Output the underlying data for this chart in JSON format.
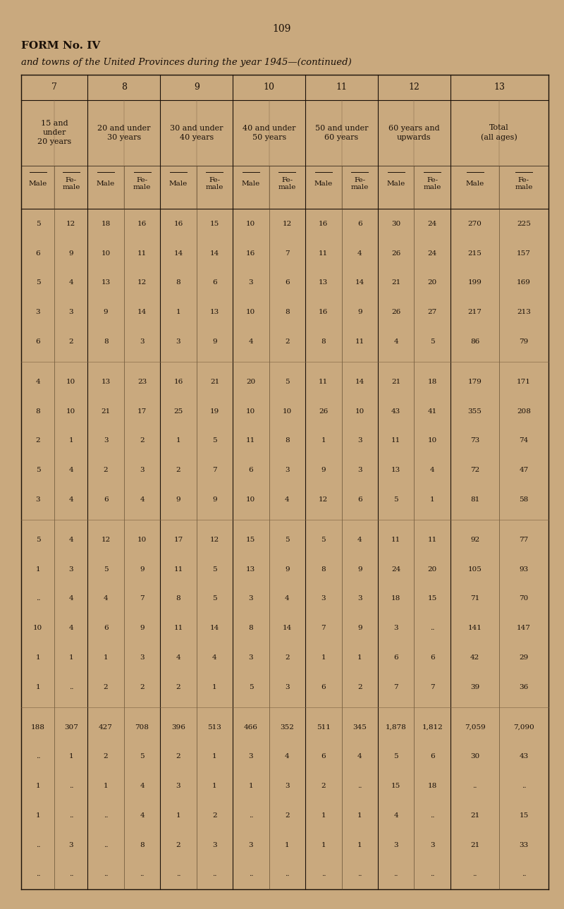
{
  "page_number": "109",
  "form_title": "FORM No. IV",
  "subtitle": "and towns of the United Provinces during the year 1945—(continued)",
  "bg": "#c9a97e",
  "tc": "#1a1008",
  "col_numbers": [
    "7",
    "8",
    "9",
    "10",
    "11",
    "12",
    "13"
  ],
  "col_descs": [
    "15 and\nunder\n20 years",
    "20 and under\n30 years",
    "30 and under\n40 years",
    "40 and under\n50 years",
    "50 and under\n60 years",
    "60 years and\nupwards",
    "Total\n(all ages)"
  ],
  "data_rows": [
    [
      "5",
      "12",
      "18",
      "16",
      "16",
      "15",
      "10",
      "12",
      "16",
      "6",
      "30",
      "24",
      "270",
      "225"
    ],
    [
      "6",
      "9",
      "10",
      "11",
      "14",
      "14",
      "16",
      "7",
      "11",
      "4",
      "26",
      "24",
      "215",
      "157"
    ],
    [
      "5",
      "4",
      "13",
      "12",
      "8",
      "6",
      "3",
      "6",
      "13",
      "14",
      "21",
      "20",
      "199",
      "169"
    ],
    [
      "3",
      "3",
      "9",
      "14",
      "1",
      "13",
      "10",
      "8",
      "16",
      "9",
      "26",
      "27",
      "217",
      "213"
    ],
    [
      "6",
      "2",
      "8",
      "3",
      "3",
      "9",
      "4",
      "2",
      "8",
      "11",
      "4",
      "5",
      "86",
      "79"
    ],
    [
      null,
      null,
      null,
      null,
      null,
      null,
      null,
      null,
      null,
      null,
      null,
      null,
      null,
      null
    ],
    [
      "4",
      "10",
      "13",
      "23",
      "16",
      "21",
      "20",
      "5",
      "11",
      "14",
      "21",
      "18",
      "179",
      "171"
    ],
    [
      "8",
      "10",
      "21",
      "17",
      "25",
      "19",
      "10",
      "10",
      "26",
      "10",
      "43",
      "41",
      "355",
      "208"
    ],
    [
      "2",
      "1",
      "3",
      "2",
      "1",
      "5",
      "11",
      "8",
      "1",
      "3",
      "11",
      "10",
      "73",
      "74"
    ],
    [
      "5",
      "4",
      "2",
      "3",
      "2",
      "7",
      "6",
      "3",
      "9",
      "3",
      "13",
      "4",
      "72",
      "47"
    ],
    [
      "3",
      "4",
      "6",
      "4",
      "9",
      "9",
      "10",
      "4",
      "12",
      "6",
      "5",
      "1",
      "81",
      "58"
    ],
    [
      null,
      null,
      null,
      null,
      null,
      null,
      null,
      null,
      null,
      null,
      null,
      null,
      null,
      null
    ],
    [
      "5",
      "4",
      "12",
      "10",
      "17",
      "12",
      "15",
      "5",
      "5",
      "4",
      "11",
      "11",
      "92",
      "77"
    ],
    [
      "1",
      "3",
      "5",
      "9",
      "11",
      "5",
      "13",
      "9",
      "8",
      "9",
      "24",
      "20",
      "105",
      "93"
    ],
    [
      "..",
      "4",
      "4",
      "7",
      "8",
      "5",
      "3",
      "4",
      "3",
      "3",
      "18",
      "15",
      "71",
      "70"
    ],
    [
      "10",
      "4",
      "6",
      "9",
      "11",
      "14",
      "8",
      "14",
      "7",
      "9",
      "3",
      "..",
      "141",
      "147"
    ],
    [
      "1",
      "1",
      "1",
      "3",
      "4",
      "4",
      "3",
      "2",
      "1",
      "1",
      "6",
      "6",
      "42",
      "29"
    ],
    [
      "1",
      "..",
      "2",
      "2",
      "2",
      "1",
      "5",
      "3",
      "6",
      "2",
      "7",
      "7",
      "39",
      "36"
    ],
    [
      null,
      null,
      null,
      null,
      null,
      null,
      null,
      null,
      null,
      null,
      null,
      null,
      null,
      null
    ],
    [
      "188",
      "307",
      "427",
      "708",
      "396",
      "513",
      "466",
      "352",
      "511",
      "345",
      "1,878",
      "1,812",
      "7,059",
      "7,090"
    ],
    [
      "..",
      "1",
      "2",
      "5",
      "2",
      "1",
      "3",
      "4",
      "6",
      "4",
      "5",
      "6",
      "30",
      "43"
    ],
    [
      "1",
      "..",
      "1",
      "4",
      "3",
      "1",
      "1",
      "3",
      "2",
      "..",
      "15",
      "18",
      "..",
      ".."
    ],
    [
      "1",
      "..",
      "..",
      "4",
      "1",
      "2",
      "..",
      "2",
      "1",
      "1",
      "4",
      "..",
      "21",
      "15"
    ],
    [
      "..",
      "3",
      "..",
      "8",
      "2",
      "3",
      "3",
      "1",
      "1",
      "1",
      "3",
      "3",
      "21",
      "33"
    ],
    [
      "..",
      "..",
      "..",
      "..",
      "..",
      "..",
      "..",
      "..",
      "..",
      "..",
      "..",
      "..",
      "..",
      ".."
    ]
  ]
}
